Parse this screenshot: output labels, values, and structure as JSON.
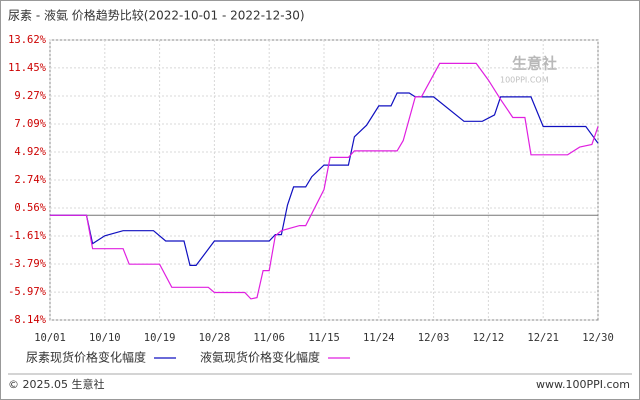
{
  "chart_data": {
    "type": "line",
    "title": "尿素 - 液氨 价格趋势比较(2022-10-01 - 2022-12-30)",
    "xlim": [
      "10/01",
      "12/30"
    ],
    "xticks": [
      "10/01",
      "10/10",
      "10/19",
      "10/28",
      "11/06",
      "11/15",
      "11/24",
      "12/03",
      "12/12",
      "12/21",
      "12/30"
    ],
    "ylim": [
      -8.14,
      13.62
    ],
    "yticks": [
      {
        "value": 13.62,
        "label": "13.62%"
      },
      {
        "value": 11.45,
        "label": "11.45%"
      },
      {
        "value": 9.27,
        "label": "9.27%"
      },
      {
        "value": 7.09,
        "label": "7.09%"
      },
      {
        "value": 4.92,
        "label": "4.92%"
      },
      {
        "value": 2.74,
        "label": "2.74%"
      },
      {
        "value": 0.56,
        "label": "0.56%"
      },
      {
        "value": -1.61,
        "label": "-1.61%"
      },
      {
        "value": -3.79,
        "label": "-3.79%"
      },
      {
        "value": -5.97,
        "label": "-5.97%"
      },
      {
        "value": -8.14,
        "label": "-8.14%"
      }
    ],
    "grid": true,
    "series": [
      {
        "name": "尿素现货价格变化幅度",
        "color": "#1010c0",
        "x": [
          "10/01",
          "10/07",
          "10/08",
          "10/10",
          "10/13",
          "10/18",
          "10/20",
          "10/23",
          "10/24",
          "10/25",
          "10/28",
          "11/06",
          "11/07",
          "11/08",
          "11/09",
          "11/10",
          "11/12",
          "11/13",
          "11/15",
          "11/19",
          "11/20",
          "11/22",
          "11/24",
          "11/26",
          "11/27",
          "11/29",
          "11/30",
          "12/03",
          "12/08",
          "12/11",
          "12/13",
          "12/14",
          "12/19",
          "12/21",
          "12/28",
          "12/30"
        ],
        "values": [
          0,
          0,
          -2.2,
          -1.6,
          -1.2,
          -1.2,
          -2.0,
          -2.0,
          -3.9,
          -3.9,
          -2.0,
          -2.0,
          -1.5,
          -1.5,
          0.8,
          2.2,
          2.2,
          3.0,
          3.9,
          3.9,
          6.1,
          7.0,
          8.5,
          8.5,
          9.5,
          9.5,
          9.2,
          9.2,
          7.3,
          7.3,
          7.8,
          9.2,
          9.2,
          6.9,
          6.9,
          5.6
        ]
      },
      {
        "name": "液氨现货价格变化幅度",
        "color": "#e020e0",
        "x": [
          "10/01",
          "10/07",
          "10/08",
          "10/13",
          "10/14",
          "10/19",
          "10/21",
          "10/27",
          "10/28",
          "11/02",
          "11/03",
          "11/04",
          "11/05",
          "11/06",
          "11/07",
          "11/08",
          "11/11",
          "11/12",
          "11/15",
          "11/16",
          "11/19",
          "11/20",
          "11/27",
          "11/28",
          "11/30",
          "12/01",
          "12/04",
          "12/10",
          "12/12",
          "12/14",
          "12/16",
          "12/18",
          "12/19",
          "12/25",
          "12/27",
          "12/29",
          "12/30"
        ],
        "values": [
          0,
          0,
          -2.6,
          -2.6,
          -3.8,
          -3.8,
          -5.6,
          -5.6,
          -6.0,
          -6.0,
          -6.5,
          -6.4,
          -4.3,
          -4.3,
          -1.6,
          -1.2,
          -0.8,
          -0.8,
          2.0,
          4.5,
          4.5,
          5.0,
          5.0,
          5.8,
          9.2,
          9.2,
          11.8,
          11.8,
          10.5,
          9.0,
          7.6,
          7.6,
          4.7,
          4.7,
          5.3,
          5.5,
          6.9
        ]
      }
    ],
    "watermark": {
      "brand": "生意社",
      "site": "100PPI.COM"
    },
    "footer": {
      "left": "© 2025.05 生意社",
      "right": "www.100PPI.com"
    }
  }
}
